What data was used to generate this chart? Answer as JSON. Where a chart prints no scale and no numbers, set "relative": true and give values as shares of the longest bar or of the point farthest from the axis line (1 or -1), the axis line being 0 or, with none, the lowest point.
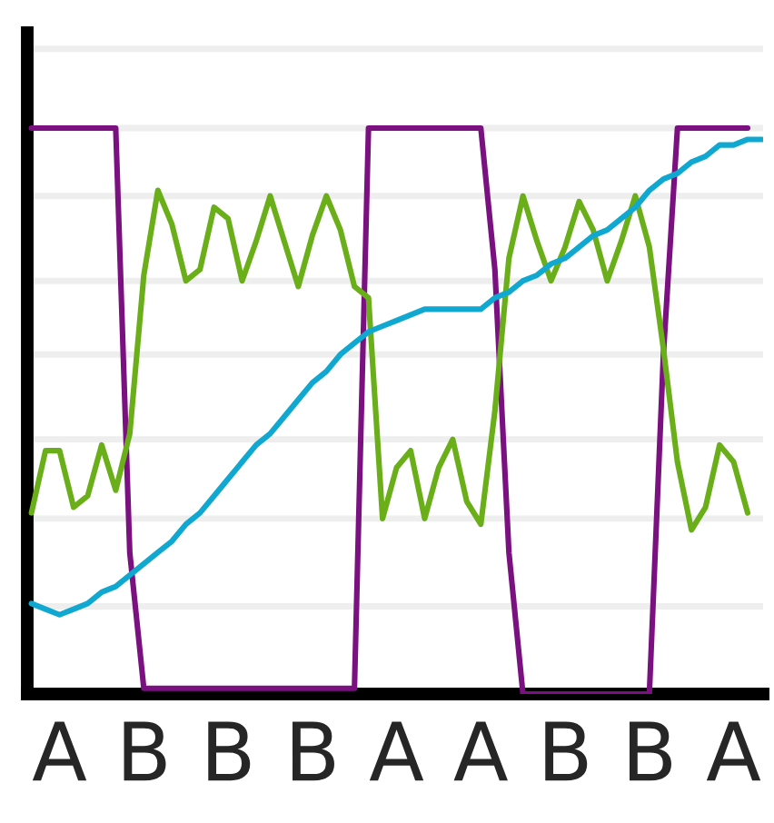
{
  "chart_data": {
    "type": "line",
    "relative": true,
    "categories": [
      null,
      null,
      "A",
      null,
      null,
      null,
      null,
      null,
      "B",
      null,
      null,
      null,
      null,
      null,
      "B",
      null,
      null,
      null,
      null,
      null,
      "B",
      null,
      null,
      null,
      null,
      null,
      "A",
      null,
      null,
      null,
      null,
      null,
      "A",
      null,
      null,
      null,
      null,
      null,
      "B",
      null,
      null,
      null,
      null,
      null,
      "B",
      null,
      null,
      null,
      null,
      null,
      "A",
      null,
      null
    ],
    "series": [
      {
        "color": "#7b1180",
        "values": [
          1.0,
          1.0,
          1.0,
          1.0,
          1.0,
          1.0,
          1.0,
          0.25,
          0.01,
          0.01,
          0.01,
          0.01,
          0.01,
          0.01,
          0.01,
          0.01,
          0.01,
          0.01,
          0.01,
          0.01,
          0.01,
          0.01,
          0.01,
          0.01,
          1.0,
          1.0,
          1.0,
          1.0,
          1.0,
          1.0,
          1.0,
          1.0,
          1.0,
          0.75,
          0.25,
          0.0,
          0.0,
          0.0,
          0.0,
          0.0,
          0.0,
          0.0,
          0.0,
          0.0,
          0.0,
          0.6,
          1.0,
          1.0,
          1.0,
          1.0,
          1.0,
          1.0,
          null
        ]
      },
      {
        "color": "#6aaf1a",
        "values": [
          0.32,
          0.43,
          0.43,
          0.33,
          0.35,
          0.44,
          0.36,
          0.46,
          0.74,
          0.89,
          0.83,
          0.73,
          0.75,
          0.86,
          0.84,
          0.73,
          0.8,
          0.88,
          0.8,
          0.72,
          0.81,
          0.88,
          0.82,
          0.72,
          0.7,
          0.31,
          0.4,
          0.43,
          0.31,
          0.4,
          0.45,
          0.34,
          0.3,
          0.5,
          0.77,
          0.88,
          0.8,
          0.73,
          0.79,
          0.87,
          0.82,
          0.73,
          0.8,
          0.88,
          0.79,
          0.61,
          0.41,
          0.29,
          0.33,
          0.44,
          0.41,
          0.32,
          null
        ]
      },
      {
        "color": "#10a8d0",
        "values": [
          0.16,
          0.15,
          0.14,
          0.15,
          0.16,
          0.18,
          0.19,
          0.21,
          0.23,
          0.25,
          0.27,
          0.3,
          0.32,
          0.35,
          0.38,
          0.41,
          0.44,
          0.46,
          0.49,
          0.52,
          0.55,
          0.57,
          0.6,
          0.62,
          0.64,
          0.65,
          0.66,
          0.67,
          0.68,
          0.68,
          0.68,
          0.68,
          0.68,
          0.7,
          0.71,
          0.73,
          0.74,
          0.76,
          0.77,
          0.79,
          0.81,
          0.82,
          0.84,
          0.86,
          0.89,
          0.91,
          0.92,
          0.94,
          0.95,
          0.97,
          0.97,
          0.98,
          0.98
        ]
      }
    ],
    "ref_lines": [
      {
        "axis": "y",
        "value": 1.14,
        "color": "#eeeeee"
      },
      {
        "axis": "y",
        "value": 1.0,
        "color": "#eeeeee"
      },
      {
        "axis": "y",
        "value": 0.88,
        "color": "#eeeeee"
      },
      {
        "axis": "y",
        "value": 0.73,
        "color": "#eeeeee"
      },
      {
        "axis": "y",
        "value": 0.6,
        "color": "#eeeeee"
      },
      {
        "axis": "y",
        "value": 0.45,
        "color": "#eeeeee"
      },
      {
        "axis": "y",
        "value": 0.31,
        "color": "#eeeeee"
      },
      {
        "axis": "y",
        "value": 0.155,
        "color": "#eeeeee"
      }
    ],
    "tick_labels": "x",
    "marker": "none",
    "legend": false
  }
}
